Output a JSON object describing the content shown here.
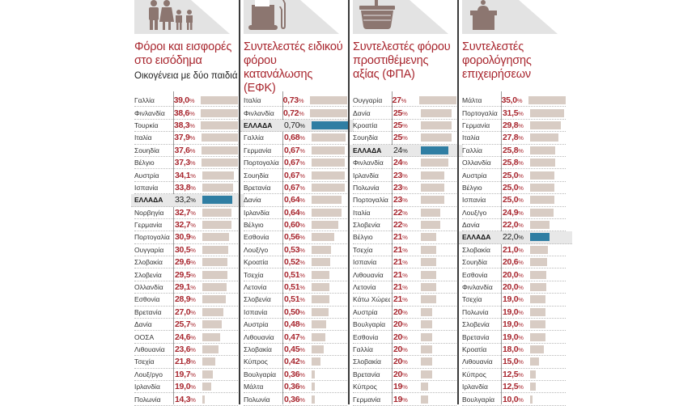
{
  "colors": {
    "title": "#a8262e",
    "bar": "#d8ccc4",
    "highlight_bar": "#2f7ea3",
    "highlight_row": "#e8e8e8",
    "icon": "#8c7670"
  },
  "chart_data": [
    {
      "type": "bar",
      "orientation": "horizontal",
      "icon": "family-icon",
      "title": "Φόροι και εισφορές στο εισόδημα",
      "subtitle": "Οικογένεια με δύο παιδιά",
      "unit": "%",
      "decimals": 1,
      "highlight": "ΕΛΛΑΔΑ",
      "categories": [
        "Γαλλία",
        "Φινλανδία",
        "Τουρκία",
        "Ιταλία",
        "Σουηδία",
        "Βέλγιο",
        "Αυστρία",
        "Ισπανία",
        "ΕΛΛΑΔΑ",
        "Νορβηγία",
        "Γερμανία",
        "Πορτογαλία",
        "Ουγγαρία",
        "Σλοβακία",
        "Σλοβενία",
        "Ολλανδία",
        "Εσθονία",
        "Βρετανία",
        "Δανία",
        "ΟΟΣΑ",
        "Λιθουανία",
        "Τσεχία",
        "Λουξ/ργο",
        "Ιρλανδία",
        "Πολωνία"
      ],
      "values": [
        39.0,
        38.6,
        38.3,
        37.9,
        37.6,
        37.3,
        34.1,
        33.8,
        33.2,
        32.7,
        32.7,
        30.9,
        30.5,
        29.6,
        29.5,
        29.1,
        28.9,
        27.0,
        25.7,
        24.6,
        23.6,
        21.8,
        19.7,
        19.0,
        14.3
      ],
      "labels": [
        "39,0",
        "38,6",
        "38,3",
        "37,9",
        "37,6",
        "37,3",
        "34,1",
        "33,8",
        "33,2",
        "32,7",
        "32,7",
        "30,9",
        "30,5",
        "29,6",
        "29,5",
        "29,1",
        "28,9",
        "27,0",
        "25,7",
        "24,6",
        "23,6",
        "21,8",
        "19,7",
        "19,0",
        "14,3"
      ]
    },
    {
      "type": "bar",
      "orientation": "horizontal",
      "icon": "fuel-pump-icon",
      "title": "Συντελεστές ειδικού φόρου κατανάλωσης (ΕΦΚ)",
      "subtitle": "",
      "unit": "%",
      "decimals": 2,
      "highlight": "ΕΛΛΑΔΑ",
      "categories": [
        "Ιταλία",
        "Φινλανδία",
        "ΕΛΛΑΔΑ",
        "Γαλλία",
        "Γερμανία",
        "Πορτογαλία",
        "Σουηδία",
        "Βρετανία",
        "Δανία",
        "Ιρλανδία",
        "Βέλγιο",
        "Εσθονία",
        "Λουξ/γο",
        "Κροατία",
        "Τσεχία",
        "Λετονία",
        "Σλοβενία",
        "Ισπανία",
        "Αυστρία",
        "Λιθουανία",
        "Σλοβακία",
        "Κύπρος",
        "Βουλγαρία",
        "Μάλτα",
        "Πολωνία"
      ],
      "values": [
        0.73,
        0.72,
        0.7,
        0.68,
        0.67,
        0.67,
        0.67,
        0.67,
        0.64,
        0.64,
        0.6,
        0.56,
        0.53,
        0.52,
        0.51,
        0.51,
        0.51,
        0.5,
        0.48,
        0.47,
        0.45,
        0.42,
        0.36,
        0.36,
        0.36
      ],
      "labels": [
        "0,73",
        "0,72",
        "0,70",
        "0,68",
        "0,67",
        "0,67",
        "0,67",
        "0,67",
        "0,64",
        "0,64",
        "0,60",
        "0,56",
        "0,53",
        "0,52",
        "0,51",
        "0,51",
        "0,51",
        "0,50",
        "0,48",
        "0,47",
        "0,45",
        "0,42",
        "0,36",
        "0,36",
        "0,36"
      ]
    },
    {
      "type": "bar",
      "orientation": "horizontal",
      "icon": "basket-icon",
      "title": "Συντελεστές φόρου προστιθέμενης αξίας (ΦΠΑ)",
      "subtitle": "",
      "unit": "%",
      "decimals": 0,
      "highlight": "ΕΛΛΑΔΑ",
      "categories": [
        "Ουγγαρία",
        "Δανία",
        "Κροατία",
        "Σουηδία",
        "ΕΛΛΑΔΑ",
        "Φινλανδία",
        "Ιρλανδία",
        "Πολωνία",
        "Πορτογαλία",
        "Ιταλία",
        "Σλοβενία",
        "Βέλγιο",
        "Τσεχία",
        "Ισπανία",
        "Λιθουανία",
        "Λετονία",
        "Κάτω Χώρες",
        "Αυστρία",
        "Βουλγαρία",
        "Εσθονία",
        "Γαλλία",
        "Σλοβακία",
        "Βρετανία",
        "Κύπρος",
        "Γερμανία"
      ],
      "values": [
        27,
        25,
        25,
        25,
        24,
        24,
        23,
        23,
        23,
        22,
        22,
        21,
        21,
        21,
        21,
        21,
        21,
        20,
        20,
        20,
        20,
        20,
        20,
        19,
        19
      ],
      "labels": [
        "27",
        "25",
        "25",
        "25",
        "24",
        "24",
        "23",
        "23",
        "23",
        "22",
        "22",
        "21",
        "21",
        "21",
        "21",
        "21",
        "21",
        "20",
        "20",
        "20",
        "20",
        "20",
        "20",
        "19",
        "19"
      ]
    },
    {
      "type": "bar",
      "orientation": "horizontal",
      "icon": "podium-icon",
      "title": "Συντελεστές φορολόγησης επιχειρήσεων",
      "subtitle": "",
      "unit": "%",
      "decimals": 1,
      "highlight": "ΕΛΛΑΔΑ",
      "categories": [
        "Μάλτα",
        "Πορτογαλία",
        "Γερμανία",
        "Ιταλία",
        "Γαλλία",
        "Ολλανδία",
        "Αυστρία",
        "Βέλγιο",
        "Ισπανία",
        "Λουξ/γο",
        "Δανία",
        "ΕΛΛΑΔΑ",
        "Σλοβακία",
        "Σουηδία",
        "Εσθονία",
        "Φινλανδία",
        "Τσεχία",
        "Πολωνία",
        "Σλοβενία",
        "Βρετανία",
        "Κροατία",
        "Λιθουανία",
        "Κύπρος",
        "Ιρλανδία",
        "Βουλγαρία"
      ],
      "values": [
        35.0,
        31.5,
        29.8,
        27.8,
        25.8,
        25.8,
        25.0,
        25.0,
        25.0,
        24.9,
        22.0,
        22.0,
        21.0,
        20.6,
        20.0,
        20.0,
        19.0,
        19.0,
        19.0,
        19.0,
        18.0,
        15.0,
        12.5,
        12.5,
        10.0
      ],
      "labels": [
        "35,0",
        "31,5",
        "29,8",
        "27,8",
        "25,8",
        "25,8",
        "25,0",
        "25,0",
        "25,0",
        "24,9",
        "22,0",
        "22,0",
        "21,0",
        "20,6",
        "20,0",
        "20,0",
        "19,0",
        "19,0",
        "19,0",
        "19,0",
        "18,0",
        "15,0",
        "12,5",
        "12,5",
        "10,0"
      ]
    }
  ]
}
